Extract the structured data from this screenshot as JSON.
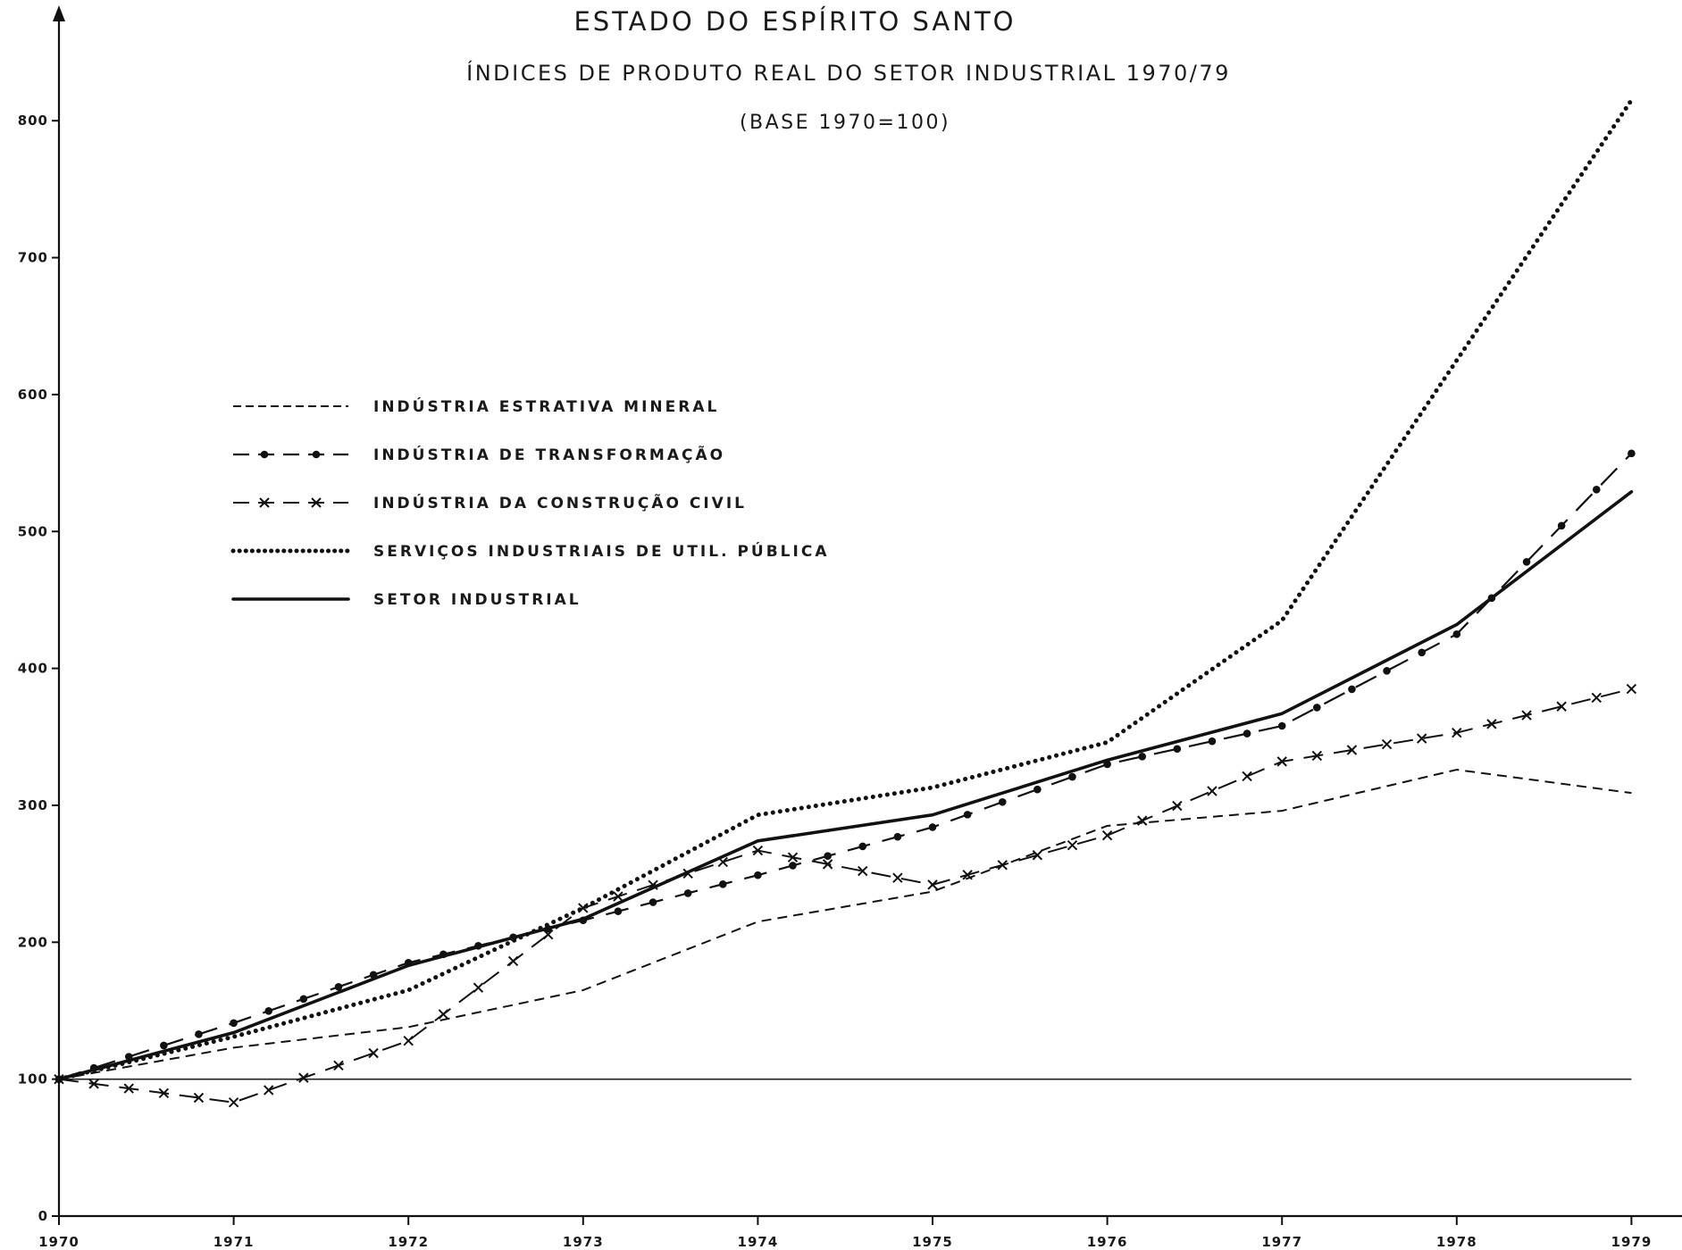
{
  "chart_data": {
    "type": "line",
    "title": "ESTADO DO ESPÍRITO SANTO",
    "subtitle": "ÍNDICES DE PRODUTO REAL DO SETOR INDUSTRIAL 1970/79",
    "base_note": "(BASE 1970=100)",
    "xlabel": "",
    "ylabel": "",
    "x": [
      "1970",
      "1971",
      "1972",
      "1973",
      "1974",
      "1975",
      "1976",
      "1977",
      "1978",
      "1979"
    ],
    "y_ticks": [
      "0",
      "100",
      "200",
      "300",
      "400",
      "500",
      "600",
      "700",
      "800"
    ],
    "ylim": [
      0,
      800
    ],
    "grid": false,
    "reference_line": 100,
    "legend_position": "upper-left",
    "series": [
      {
        "name": "INDÚSTRIA ESTRATIVA MINERAL",
        "style": "dashed",
        "values": [
          100,
          123,
          138,
          165,
          215,
          237,
          285,
          296,
          326,
          309
        ]
      },
      {
        "name": "INDÚSTRIA DE TRANSFORMAÇÃO",
        "style": "dash-dot",
        "values": [
          100,
          141,
          185,
          216,
          249,
          284,
          330,
          358,
          425,
          557
        ]
      },
      {
        "name": "INDÚSTRIA DA CONSTRUÇÃO CIVIL",
        "style": "dash-cross",
        "values": [
          100,
          83,
          128,
          225,
          267,
          242,
          278,
          332,
          353,
          385
        ]
      },
      {
        "name": "SERVIÇOS INDUSTRIAIS DE UTIL. PÚBLICA",
        "style": "dotted",
        "values": [
          100,
          131,
          165,
          225,
          293,
          313,
          346,
          435,
          625,
          815
        ]
      },
      {
        "name": "SETOR INDUSTRIAL",
        "style": "solid",
        "values": [
          100,
          134,
          183,
          217,
          274,
          293,
          333,
          367,
          432,
          529
        ]
      }
    ]
  }
}
